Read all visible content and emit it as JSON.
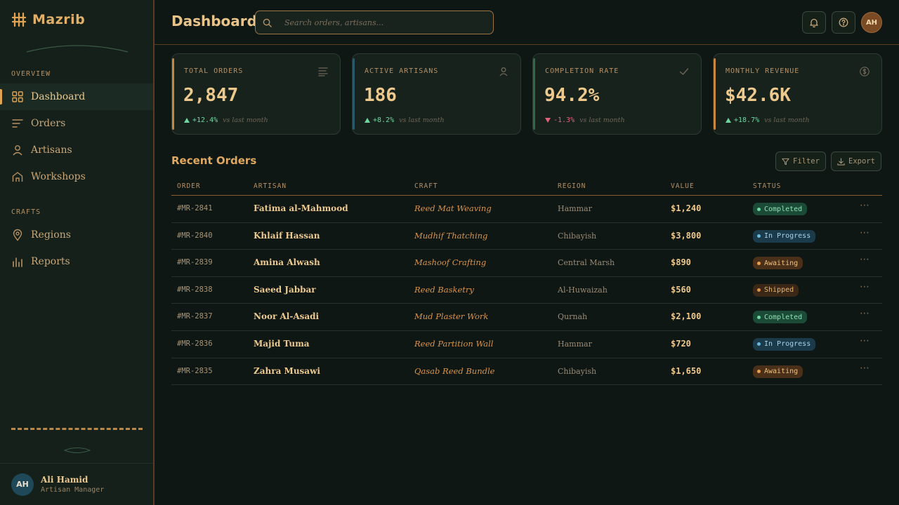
{
  "app": {
    "brand": "Mazrib"
  },
  "sidebar": {
    "sections": [
      {
        "label": "OVERVIEW"
      },
      {
        "label": "CRAFTS"
      }
    ],
    "items": [
      {
        "label": "Dashboard",
        "icon": "grid-icon",
        "active": true
      },
      {
        "label": "Orders",
        "icon": "list-icon"
      },
      {
        "label": "Artisans",
        "icon": "user-icon"
      },
      {
        "label": "Workshops",
        "icon": "home-icon"
      },
      {
        "label": "Regions",
        "icon": "pin-icon"
      },
      {
        "label": "Reports",
        "icon": "bar-chart-icon"
      }
    ],
    "user": {
      "initials": "AH",
      "name": "Ali Hamid",
      "role": "Artisan Manager"
    }
  },
  "header": {
    "title": "Dashboard",
    "search_placeholder": "Search orders, artisans...",
    "avatar_initials": "AH"
  },
  "stats": [
    {
      "label": "TOTAL ORDERS",
      "value": "2,847",
      "delta": "+12.4%",
      "direction": "up",
      "note": "vs last month",
      "accent": "#c7873e",
      "icon": "list-icon"
    },
    {
      "label": "ACTIVE ARTISANS",
      "value": "186",
      "delta": "+8.2%",
      "direction": "up",
      "note": "vs last month",
      "accent": "#2a5a6a",
      "icon": "user-icon"
    },
    {
      "label": "COMPLETION RATE",
      "value": "94.2%",
      "delta": "-1.3%",
      "direction": "down",
      "note": "vs last month",
      "accent": "#2e6a4a",
      "icon": "check-icon"
    },
    {
      "label": "MONTHLY REVENUE",
      "value": "$42.6K",
      "delta": "+18.7%",
      "direction": "up",
      "note": "vs last month",
      "accent": "#c7873e",
      "icon": "dollar-icon"
    }
  ],
  "orders": {
    "title": "Recent Orders",
    "filter_label": "Filter",
    "export_label": "Export",
    "columns": [
      "ORDER",
      "ARTISAN",
      "CRAFT",
      "REGION",
      "VALUE",
      "STATUS"
    ],
    "rows": [
      {
        "order": "#MR-2841",
        "artisan": "Fatima al-Mahmood",
        "craft": "Reed Mat Weaving",
        "region": "Hammar",
        "value": "$1,240",
        "status": "Completed",
        "status_kind": "completed"
      },
      {
        "order": "#MR-2840",
        "artisan": "Khlaif Hassan",
        "craft": "Mudhif Thatching",
        "region": "Chibayish",
        "value": "$3,800",
        "status": "In Progress",
        "status_kind": "progress"
      },
      {
        "order": "#MR-2839",
        "artisan": "Amina Alwash",
        "craft": "Mashoof Crafting",
        "region": "Central Marsh",
        "value": "$890",
        "status": "Awaiting",
        "status_kind": "awaiting"
      },
      {
        "order": "#MR-2838",
        "artisan": "Saeed Jabbar",
        "craft": "Reed Basketry",
        "region": "Al-Huwaizah",
        "value": "$560",
        "status": "Shipped",
        "status_kind": "shipped"
      },
      {
        "order": "#MR-2837",
        "artisan": "Noor Al-Asadi",
        "craft": "Mud Plaster Work",
        "region": "Qurnah",
        "value": "$2,100",
        "status": "Completed",
        "status_kind": "completed"
      },
      {
        "order": "#MR-2836",
        "artisan": "Majid Tuma",
        "craft": "Reed Partition Wall",
        "region": "Hammar",
        "value": "$720",
        "status": "In Progress",
        "status_kind": "progress"
      },
      {
        "order": "#MR-2835",
        "artisan": "Zahra Musawi",
        "craft": "Qasab Reed Bundle",
        "region": "Chibayish",
        "value": "$1,650",
        "status": "Awaiting",
        "status_kind": "awaiting"
      }
    ]
  }
}
